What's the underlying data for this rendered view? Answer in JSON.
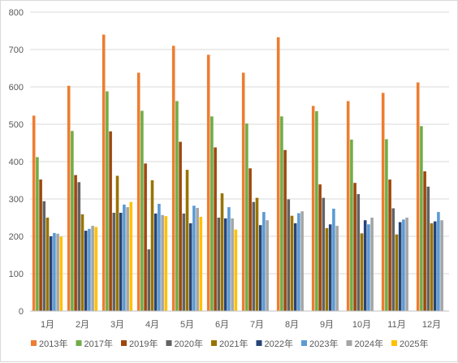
{
  "chart_data": {
    "type": "bar",
    "categories": [
      "1月",
      "2月",
      "3月",
      "4月",
      "5月",
      "6月",
      "7月",
      "8月",
      "9月",
      "10月",
      "11月",
      "12月"
    ],
    "ylim": [
      0,
      800
    ],
    "yticks": [
      0,
      100,
      200,
      300,
      400,
      500,
      600,
      700,
      800
    ],
    "grid": true,
    "legend_position": "bottom",
    "series": [
      {
        "name": "2013年",
        "color": "#ED7D31",
        "values": [
          523,
          603,
          740,
          638,
          710,
          686,
          638,
          733,
          549,
          562,
          584,
          612
        ]
      },
      {
        "name": "2017年",
        "color": "#70AD47",
        "values": [
          412,
          482,
          588,
          536,
          562,
          521,
          502,
          521,
          535,
          459,
          460,
          495
        ]
      },
      {
        "name": "2019年",
        "color": "#9E480E",
        "values": [
          352,
          364,
          481,
          395,
          453,
          438,
          382,
          431,
          339,
          343,
          352,
          374
        ]
      },
      {
        "name": "2020年",
        "color": "#636363",
        "values": [
          294,
          345,
          263,
          165,
          261,
          250,
          292,
          299,
          303,
          313,
          275,
          333
        ]
      },
      {
        "name": "2021年",
        "color": "#997300",
        "values": [
          250,
          259,
          362,
          350,
          378,
          315,
          303,
          255,
          222,
          208,
          205,
          235
        ]
      },
      {
        "name": "2022年",
        "color": "#264478",
        "values": [
          200,
          215,
          263,
          261,
          235,
          248,
          230,
          235,
          232,
          243,
          238,
          240
        ]
      },
      {
        "name": "2023年",
        "color": "#5B9BD5",
        "values": [
          209,
          220,
          285,
          287,
          282,
          278,
          265,
          262,
          274,
          232,
          245,
          265
        ]
      },
      {
        "name": "2024年",
        "color": "#A5A5A5",
        "values": [
          207,
          228,
          278,
          257,
          276,
          248,
          243,
          267,
          228,
          250,
          250,
          243
        ]
      },
      {
        "name": "2025年",
        "color": "#FFC000",
        "values": [
          199,
          225,
          292,
          254,
          252,
          218,
          null,
          null,
          null,
          null,
          null,
          null
        ]
      }
    ]
  }
}
